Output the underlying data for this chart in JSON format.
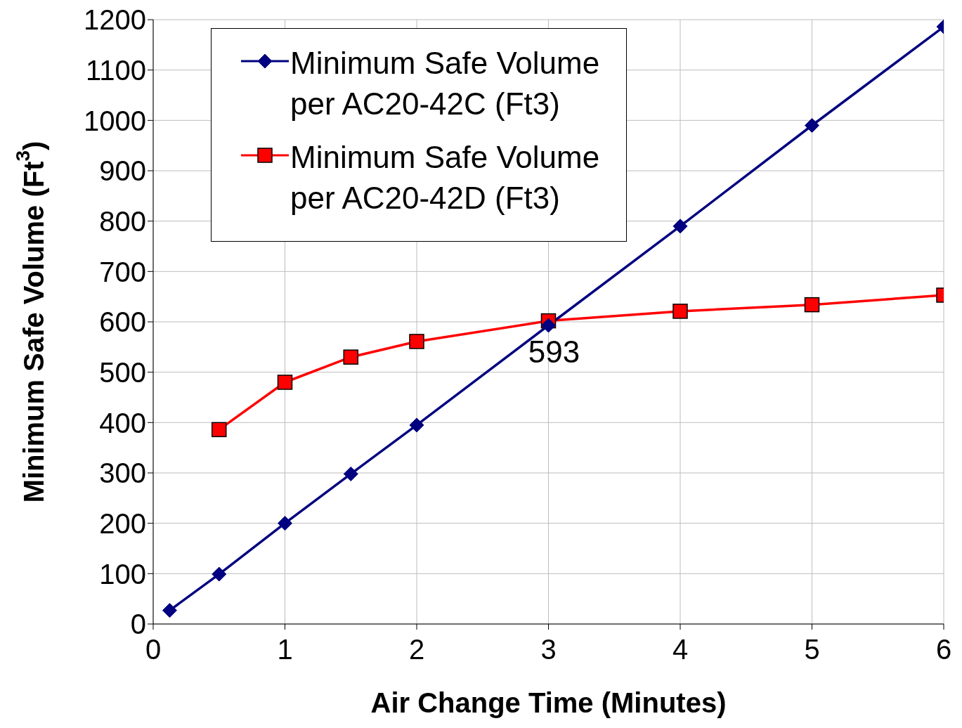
{
  "chart_data": {
    "type": "line",
    "xlabel": "Air Change Time  (Minutes)",
    "ylabel": "Minimum Safe Volume  (Ft$^{3}$)",
    "xlim": [
      0,
      6
    ],
    "xticks": [
      0,
      1,
      2,
      3,
      4,
      5,
      6
    ],
    "ylim": [
      0,
      1200
    ],
    "yticks": [
      0,
      100,
      200,
      300,
      400,
      500,
      600,
      700,
      800,
      900,
      1000,
      1100,
      1200
    ],
    "grid": true,
    "legend": "top left",
    "series": [
      {
        "name": "Minimum Safe Volume per AC20-42C (Ft3)",
        "color": "#000080",
        "marker": "diamond",
        "x": [
          0.125,
          0.5,
          1,
          1.5,
          2,
          3,
          4,
          5,
          6
        ],
        "values": [
          27,
          99,
          200,
          298,
          395,
          593,
          790,
          990,
          1186
        ]
      },
      {
        "name": "Minimum Safe Volume per AC20-42D (Ft3)",
        "color": "#ff0000",
        "marker": "square",
        "x": [
          0.5,
          1,
          1.5,
          2,
          3,
          4,
          5,
          6
        ],
        "values": [
          386,
          480,
          530,
          561,
          602,
          621,
          634,
          653
        ]
      }
    ],
    "annotations": [
      {
        "text": "593",
        "x": 3,
        "y": 593
      }
    ]
  }
}
